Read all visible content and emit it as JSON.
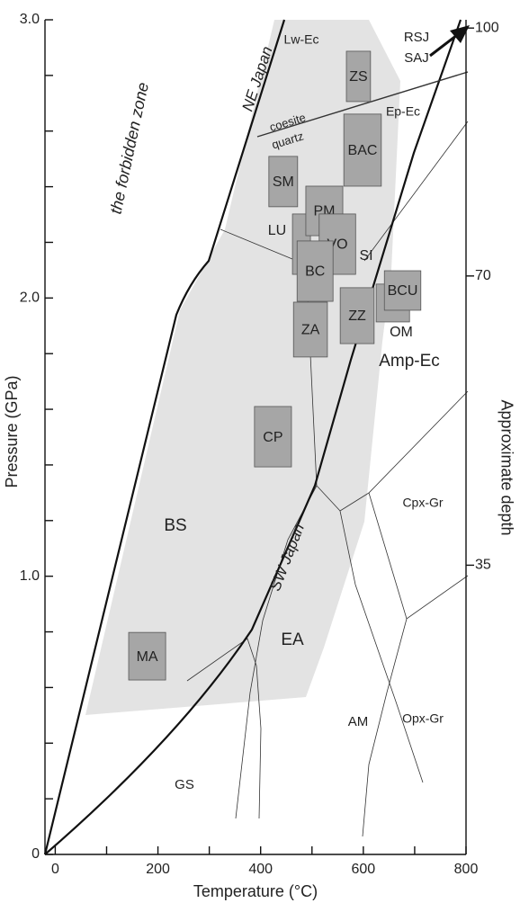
{
  "chart_data": {
    "type": "pt-diagram",
    "xlabel": "Temperature (°C)",
    "ylabel": "Pressure (GPa)",
    "y2label": "Approximate depth",
    "xlim": [
      -20,
      800
    ],
    "xticks": [
      0,
      200,
      400,
      600,
      800
    ],
    "xminor_ticks": [
      100,
      300,
      500,
      700
    ],
    "ylim": [
      0,
      3.0
    ],
    "yticks": [
      0,
      {
        "value": 1,
        "label": "1.0"
      },
      {
        "value": 2,
        "label": "2.0"
      },
      {
        "value": 3,
        "label": "3.0"
      }
    ],
    "yminor_ticks": [
      0.2,
      0.4,
      0.6,
      0.8,
      1.2,
      1.4,
      1.6,
      1.8,
      2.2,
      2.4,
      2.6,
      2.8
    ],
    "y2lim": [
      0,
      101
    ],
    "y2ticks": [
      35,
      70,
      100
    ],
    "box_color": "#a6a6a6",
    "boxes": [
      {
        "label": "ZS",
        "x": [
          567,
          614
        ],
        "y": [
          2.706,
          2.887
        ]
      },
      {
        "label": "BAC",
        "x": [
          562,
          635
        ],
        "y": [
          2.402,
          2.661
        ]
      },
      {
        "label": "SM",
        "x": [
          416,
          472
        ],
        "y": [
          2.328,
          2.509
        ]
      },
      {
        "x": [
          462,
          497
        ],
        "y": [
          2.085,
          2.302
        ]
      },
      {
        "label": "PM",
        "x": [
          488,
          560
        ],
        "y": [
          2.224,
          2.402
        ]
      },
      {
        "x": [
          625,
          690
        ],
        "y": [
          1.914,
          2.05
        ]
      },
      {
        "label": "BCU",
        "x": [
          641,
          712
        ],
        "y": [
          1.956,
          2.098
        ]
      },
      {
        "label": "VO",
        "x": [
          514,
          585
        ],
        "y": [
          2.085,
          2.302
        ]
      },
      {
        "label": "BC",
        "x": [
          471,
          541
        ],
        "y": [
          1.988,
          2.205
        ]
      },
      {
        "label": "ZZ",
        "x": [
          555,
          621
        ],
        "y": [
          1.836,
          2.037
        ]
      },
      {
        "label": "ZA",
        "x": [
          464,
          530
        ],
        "y": [
          1.788,
          1.985
        ]
      },
      {
        "label": "CP",
        "x": [
          388,
          460
        ],
        "y": [
          1.393,
          1.61
        ]
      },
      {
        "label": "MA",
        "x": [
          143,
          215
        ],
        "y": [
          0.627,
          0.798
        ]
      }
    ],
    "annotations": [
      "the forbidden zone",
      "NE Japan",
      "SW Japan",
      "coesite",
      "quartz",
      "RSJ",
      "SAJ",
      "Lw-Ec",
      "Ep-Ec",
      "Amp-Ec",
      "Cpx-Gr",
      "Opx-Gr",
      "LU",
      "SI",
      "OM",
      "BS",
      "EA",
      "AM",
      "GS"
    ]
  }
}
